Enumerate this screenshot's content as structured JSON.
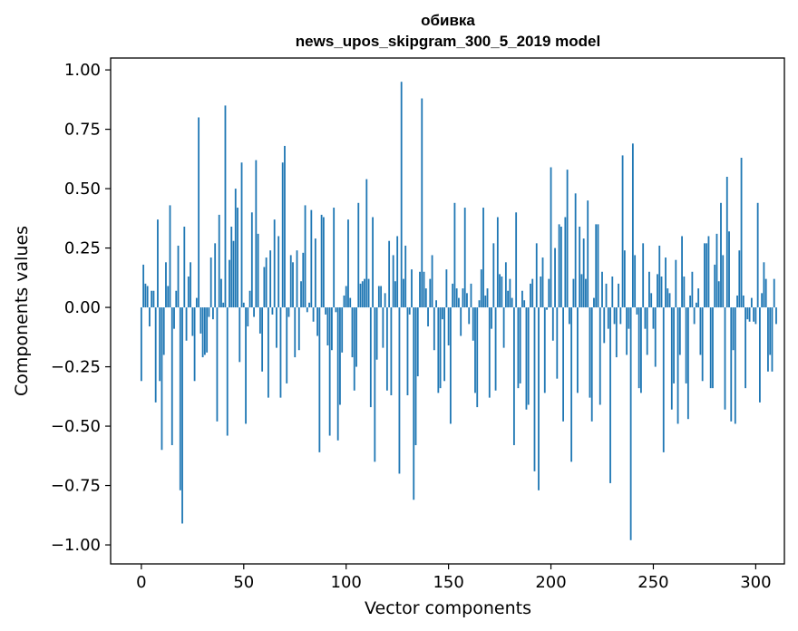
{
  "chart_data": {
    "type": "bar",
    "title": "обивка",
    "subtitle": "news_upos_skipgram_300_5_2019 model",
    "xlabel": "Vector components",
    "ylabel": "Components values",
    "xlim": [
      -15,
      314
    ],
    "ylim": [
      -1.08,
      1.05
    ],
    "xticks": [
      0,
      50,
      100,
      150,
      200,
      250,
      300
    ],
    "xtick_labels": [
      "0",
      "50",
      "100",
      "150",
      "200",
      "250",
      "300"
    ],
    "yticks": [
      1.0,
      0.75,
      0.5,
      0.25,
      0.0,
      -0.25,
      -0.5,
      -0.75,
      -1.0
    ],
    "ytick_labels": [
      "1.00",
      "0.75",
      "0.50",
      "0.25",
      "0.00",
      "−0.25",
      "−0.50",
      "−0.75",
      "−1.00"
    ],
    "bar_color": "#1f77b4",
    "grid": false,
    "values": [
      -0.31,
      0.18,
      0.1,
      0.09,
      -0.08,
      0.07,
      0.07,
      -0.4,
      0.37,
      -0.31,
      -0.6,
      -0.2,
      0.19,
      0.09,
      0.43,
      -0.58,
      -0.09,
      0.07,
      0.26,
      -0.77,
      -0.91,
      0.34,
      -0.14,
      0.13,
      0.19,
      -0.12,
      -0.31,
      0.04,
      0.8,
      -0.11,
      -0.21,
      -0.2,
      -0.19,
      -0.04,
      0.21,
      -0.05,
      0.27,
      -0.48,
      0.39,
      0.12,
      0.02,
      0.85,
      -0.54,
      0.2,
      0.34,
      0.28,
      0.5,
      0.42,
      -0.23,
      0.61,
      0.02,
      -0.49,
      -0.08,
      0.07,
      0.4,
      -0.04,
      0.62,
      0.31,
      -0.11,
      -0.27,
      0.17,
      0.21,
      -0.38,
      0.24,
      -0.03,
      0.37,
      -0.17,
      0.3,
      -0.38,
      0.61,
      0.68,
      -0.32,
      -0.04,
      0.22,
      0.19,
      -0.21,
      0.24,
      -0.18,
      0.11,
      0.23,
      0.43,
      -0.02,
      0.02,
      0.41,
      -0.06,
      0.29,
      -0.12,
      -0.61,
      0.39,
      0.38,
      -0.03,
      -0.16,
      -0.54,
      -0.18,
      0.42,
      -0.02,
      -0.56,
      -0.41,
      -0.19,
      0.05,
      0.09,
      0.37,
      0.04,
      -0.21,
      -0.35,
      -0.25,
      0.44,
      0.1,
      0.11,
      0.12,
      0.54,
      0.12,
      -0.42,
      0.38,
      -0.65,
      -0.22,
      0.09,
      0.09,
      -0.17,
      0.06,
      -0.35,
      0.28,
      -0.37,
      0.22,
      0.11,
      0.3,
      -0.7,
      0.95,
      0.12,
      0.26,
      -0.37,
      -0.03,
      0.16,
      -0.81,
      -0.58,
      -0.29,
      0.15,
      0.88,
      0.15,
      0.08,
      -0.08,
      0.12,
      0.22,
      -0.18,
      0.03,
      -0.36,
      -0.34,
      -0.05,
      -0.31,
      0.16,
      -0.16,
      -0.49,
      0.1,
      0.44,
      0.08,
      0.04,
      -0.12,
      0.08,
      0.42,
      0.06,
      -0.07,
      0.1,
      -0.14,
      -0.36,
      -0.42,
      0.03,
      0.16,
      0.42,
      0.05,
      0.08,
      -0.38,
      -0.09,
      0.27,
      -0.35,
      0.38,
      0.14,
      0.13,
      -0.17,
      0.19,
      0.07,
      0.12,
      0.04,
      -0.58,
      0.4,
      -0.34,
      -0.32,
      0.07,
      0.03,
      -0.43,
      -0.41,
      0.1,
      0.12,
      -0.69,
      0.27,
      -0.77,
      0.13,
      0.21,
      -0.36,
      -0.01,
      0.12,
      0.59,
      -0.14,
      0.25,
      -0.3,
      0.35,
      0.34,
      -0.48,
      0.38,
      0.58,
      -0.07,
      -0.65,
      0.12,
      0.48,
      -0.36,
      0.34,
      0.14,
      0.29,
      0.12,
      0.45,
      -0.38,
      -0.48,
      0.04,
      0.35,
      0.35,
      -0.41,
      0.15,
      -0.15,
      0.1,
      -0.09,
      -0.74,
      0.13,
      -0.07,
      -0.21,
      0.1,
      -0.07,
      0.64,
      0.24,
      -0.2,
      -0.09,
      -0.98,
      0.69,
      0.22,
      -0.03,
      -0.34,
      -0.36,
      0.27,
      -0.09,
      -0.2,
      0.15,
      0.06,
      -0.09,
      -0.25,
      0.14,
      0.26,
      0.13,
      -0.61,
      0.21,
      0.08,
      0.06,
      -0.43,
      -0.32,
      0.2,
      -0.49,
      -0.2,
      0.3,
      0.13,
      -0.32,
      -0.47,
      0.05,
      0.15,
      -0.07,
      0.02,
      0.08,
      -0.2,
      -0.31,
      0.27,
      0.27,
      0.3,
      -0.34,
      -0.34,
      0.18,
      0.31,
      0.11,
      0.44,
      0.22,
      -0.43,
      0.55,
      0.32,
      -0.48,
      -0.18,
      -0.49,
      0.05,
      0.24,
      0.63,
      0.05,
      -0.34,
      -0.05,
      -0.06,
      0.04,
      -0.06,
      -0.07,
      0.44,
      -0.4,
      0.06,
      0.19,
      0.12,
      -0.27,
      -0.2,
      -0.27,
      0.12,
      -0.07
    ]
  }
}
